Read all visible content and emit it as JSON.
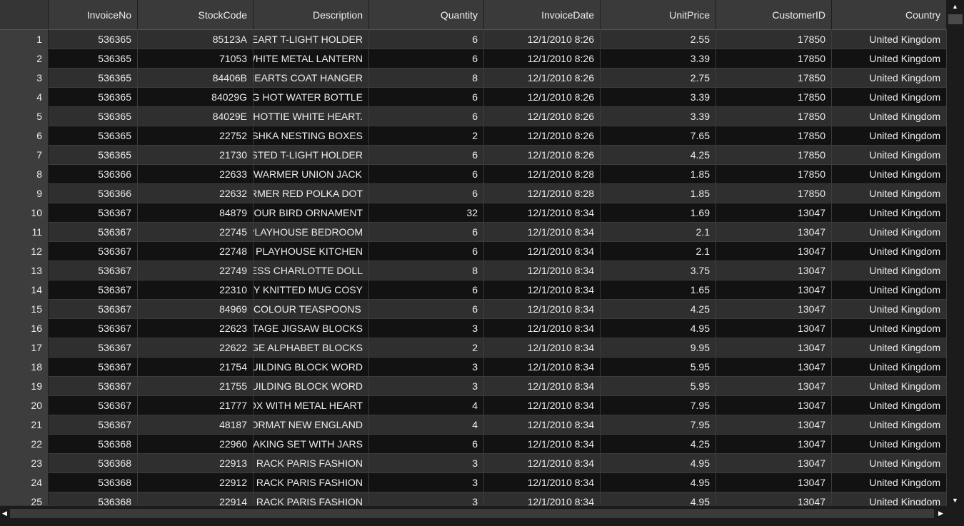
{
  "table": {
    "columns": [
      "",
      "InvoiceNo",
      "StockCode",
      "Description",
      "Quantity",
      "InvoiceDate",
      "UnitPrice",
      "CustomerID",
      "Country"
    ],
    "rows": [
      [
        "1",
        "536365",
        "85123A",
        "HEART T-LIGHT HOLDER",
        "6",
        "12/1/2010 8:26",
        "2.55",
        "17850",
        "United Kingdom"
      ],
      [
        "2",
        "536365",
        "71053",
        "WHITE METAL LANTERN",
        "6",
        "12/1/2010 8:26",
        "3.39",
        "17850",
        "United Kingdom"
      ],
      [
        "3",
        "536365",
        "84406B",
        "HEARTS COAT HANGER",
        "8",
        "12/1/2010 8:26",
        "2.75",
        "17850",
        "United Kingdom"
      ],
      [
        "4",
        "536365",
        "84029G",
        "AG HOT WATER BOTTLE",
        "6",
        "12/1/2010 8:26",
        "3.39",
        "17850",
        "United Kingdom"
      ],
      [
        "5",
        "536365",
        "84029E",
        "HOTTIE WHITE HEART.",
        "6",
        "12/1/2010 8:26",
        "3.39",
        "17850",
        "United Kingdom"
      ],
      [
        "6",
        "536365",
        "22752",
        "ISHKA NESTING BOXES",
        "2",
        "12/1/2010 8:26",
        "7.65",
        "17850",
        "United Kingdom"
      ],
      [
        "7",
        "536365",
        "21730",
        "OSTED T-LIGHT HOLDER",
        "6",
        "12/1/2010 8:26",
        "4.25",
        "17850",
        "United Kingdom"
      ],
      [
        "8",
        "536366",
        "22633",
        "WARMER UNION JACK",
        "6",
        "12/1/2010 8:28",
        "1.85",
        "17850",
        "United Kingdom"
      ],
      [
        "9",
        "536366",
        "22632",
        "RMER RED POLKA DOT",
        "6",
        "12/1/2010 8:28",
        "1.85",
        "17850",
        "United Kingdom"
      ],
      [
        "10",
        "536367",
        "84879",
        "LOUR BIRD ORNAMENT",
        "32",
        "12/1/2010 8:34",
        "1.69",
        "13047",
        "United Kingdom"
      ],
      [
        "11",
        "536367",
        "22745",
        "PLAYHOUSE BEDROOM",
        "6",
        "12/1/2010 8:34",
        "2.1",
        "13047",
        "United Kingdom"
      ],
      [
        "12",
        "536367",
        "22748",
        "S PLAYHOUSE KITCHEN",
        "6",
        "12/1/2010 8:34",
        "2.1",
        "13047",
        "United Kingdom"
      ],
      [
        "13",
        "536367",
        "22749",
        "ESS CHARLOTTE DOLL",
        "8",
        "12/1/2010 8:34",
        "3.75",
        "13047",
        "United Kingdom"
      ],
      [
        "14",
        "536367",
        "22310",
        "Y KNITTED MUG COSY",
        "6",
        "12/1/2010 8:34",
        "1.65",
        "13047",
        "United Kingdom"
      ],
      [
        "15",
        "536367",
        "84969",
        "COLOUR TEASPOONS",
        "6",
        "12/1/2010 8:34",
        "4.25",
        "13047",
        "United Kingdom"
      ],
      [
        "16",
        "536367",
        "22623",
        "TAGE JIGSAW BLOCKS",
        "3",
        "12/1/2010 8:34",
        "4.95",
        "13047",
        "United Kingdom"
      ],
      [
        "17",
        "536367",
        "22622",
        "GE ALPHABET BLOCKS",
        "2",
        "12/1/2010 8:34",
        "9.95",
        "13047",
        "United Kingdom"
      ],
      [
        "18",
        "536367",
        "21754",
        "UILDING BLOCK WORD",
        "3",
        "12/1/2010 8:34",
        "5.95",
        "13047",
        "United Kingdom"
      ],
      [
        "19",
        "536367",
        "21755",
        "UILDING BLOCK WORD",
        "3",
        "12/1/2010 8:34",
        "5.95",
        "13047",
        "United Kingdom"
      ],
      [
        "20",
        "536367",
        "21777",
        "OX WITH METAL HEART",
        "4",
        "12/1/2010 8:34",
        "7.95",
        "13047",
        "United Kingdom"
      ],
      [
        "21",
        "536367",
        "48187",
        "ORMAT NEW ENGLAND",
        "4",
        "12/1/2010 8:34",
        "7.95",
        "13047",
        "United Kingdom"
      ],
      [
        "22",
        "536368",
        "22960",
        "MAKING SET WITH JARS",
        "6",
        "12/1/2010 8:34",
        "4.25",
        "13047",
        "United Kingdom"
      ],
      [
        "23",
        "536368",
        "22913",
        "T RACK PARIS FASHION",
        "3",
        "12/1/2010 8:34",
        "4.95",
        "13047",
        "United Kingdom"
      ],
      [
        "24",
        "536368",
        "22912",
        "T RACK PARIS FASHION",
        "3",
        "12/1/2010 8:34",
        "4.95",
        "13047",
        "United Kingdom"
      ],
      [
        "25",
        "536368",
        "22914",
        "T RACK PARIS FASHION",
        "3",
        "12/1/2010 8:34",
        "4.95",
        "13047",
        "United Kingdom"
      ]
    ]
  },
  "scrollbars": {
    "up_icon": "triangle-up-icon",
    "down_icon": "triangle-down-icon",
    "left_icon": "triangle-left-icon",
    "right_icon": "triangle-right-icon"
  },
  "colors": {
    "background": "#1b1b1b",
    "header": "#3a3a3a",
    "row_odd": "#2f2f2f",
    "row_even": "#121212",
    "text": "#ececec"
  }
}
